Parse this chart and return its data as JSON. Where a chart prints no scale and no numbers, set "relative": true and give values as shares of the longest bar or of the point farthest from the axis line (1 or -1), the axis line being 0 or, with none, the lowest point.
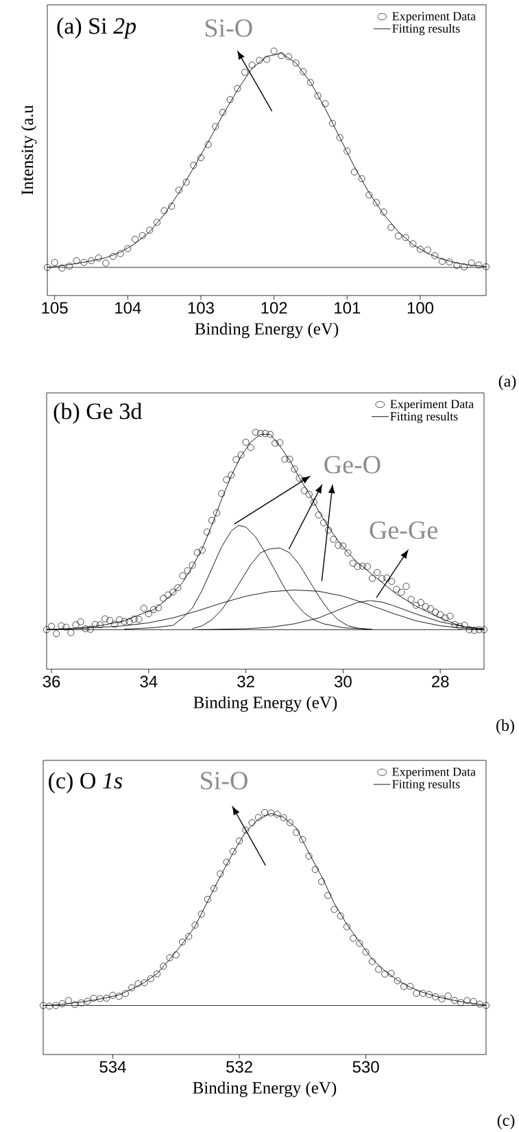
{
  "chart_data": [
    {
      "type": "scatter",
      "title": "(a) Si *2p*",
      "xlabel": "Binding Energy (eV)",
      "ylabel": "Intensity (a.u",
      "relative": true,
      "legend": "top right",
      "xlim": [
        105.1,
        99.1
      ],
      "xticks": [
        105,
        104,
        103,
        102,
        101,
        100
      ],
      "annotations": [
        "Si-O",
        "(a)"
      ],
      "series": [
        {
          "name": "Experiment Data",
          "marker": "circle",
          "color": "#000000",
          "x": [
            105.1,
            105,
            104.9,
            104.8,
            104.7,
            104.6,
            104.5,
            104.4,
            104.3,
            104.2,
            104.1,
            104,
            103.9,
            103.8,
            103.7,
            103.6,
            103.5,
            103.4,
            103.3,
            103.2,
            103.1,
            103,
            102.9,
            102.8,
            102.7,
            102.6,
            102.5,
            102.4,
            102.3,
            102.2,
            102.1,
            102,
            101.9,
            101.8,
            101.7,
            101.6,
            101.5,
            101.4,
            101.3,
            101.2,
            101.1,
            101,
            100.9,
            100.8,
            100.7,
            100.6,
            100.5,
            100.4,
            100.3,
            100.2,
            100.1,
            100,
            99.9,
            99.8,
            99.7,
            99.6,
            99.5,
            99.4,
            99.3,
            99.2,
            99.1
          ],
          "values": [
            0,
            0.023,
            -0.003,
            0.006,
            0.031,
            0.023,
            0.031,
            0.044,
            0.02,
            0.051,
            0.064,
            0.087,
            0.13,
            0.147,
            0.172,
            0.208,
            0.262,
            0.283,
            0.357,
            0.394,
            0.472,
            0.507,
            0.568,
            0.651,
            0.717,
            0.776,
            0.827,
            0.902,
            0.936,
            0.957,
            0.962,
            1,
            0.979,
            0.974,
            0.945,
            0.905,
            0.855,
            0.793,
            0.757,
            0.666,
            0.6,
            0.538,
            0.441,
            0.41,
            0.335,
            0.3,
            0.256,
            0.185,
            0.145,
            0.138,
            0.109,
            0.084,
            0.081,
            0.054,
            0.028,
            0.025,
            0.009,
            0.002,
            0.021,
            0.011,
            0.003
          ]
        },
        {
          "name": "Fitting results",
          "type": "line",
          "marker": "none",
          "color": "#000000",
          "x": [
            105.1,
            104.9,
            104.7,
            104.5,
            104.3,
            104.1,
            103.9,
            103.7,
            103.5,
            103.3,
            103.1,
            102.9,
            102.7,
            102.5,
            102.3,
            102.1,
            101.9,
            101.7,
            101.5,
            101.3,
            101.1,
            100.9,
            100.7,
            100.5,
            100.3,
            100.1,
            99.9,
            99.7,
            99.5,
            99.3,
            99.1
          ],
          "values": [
            0,
            0.008,
            0.018,
            0.03,
            0.045,
            0.07,
            0.11,
            0.165,
            0.245,
            0.345,
            0.46,
            0.58,
            0.705,
            0.82,
            0.92,
            0.975,
            0.99,
            0.945,
            0.855,
            0.735,
            0.6,
            0.465,
            0.345,
            0.245,
            0.165,
            0.105,
            0.065,
            0.038,
            0.02,
            0.01,
            0.004
          ]
        }
      ]
    },
    {
      "type": "scatter",
      "title": "(b) Ge 3d",
      "xlabel": "Binding Energy (eV)",
      "relative": true,
      "legend": "top right",
      "xlim": [
        36.1,
        27.1
      ],
      "xticks": [
        36,
        34,
        32,
        30,
        28
      ],
      "annotations": [
        "Ge-O",
        "Ge-Ge",
        "(b)"
      ],
      "series": [
        {
          "name": "Experiment Data",
          "marker": "circle",
          "color": "#000000",
          "x": [
            36.1,
            36,
            35.9,
            35.8,
            35.7,
            35.6,
            35.5,
            35.4,
            35.3,
            35.2,
            35.1,
            35,
            34.9,
            34.8,
            34.7,
            34.6,
            34.5,
            34.4,
            34.3,
            34.2,
            34.1,
            34,
            33.9,
            33.8,
            33.7,
            33.6,
            33.5,
            33.4,
            33.3,
            33.2,
            33.1,
            33,
            32.9,
            32.8,
            32.7,
            32.6,
            32.5,
            32.4,
            32.3,
            32.2,
            32.1,
            32,
            31.9,
            31.8,
            31.7,
            31.6,
            31.5,
            31.4,
            31.3,
            31.2,
            31.1,
            31,
            30.9,
            30.8,
            30.7,
            30.6,
            30.5,
            30.4,
            30.3,
            30.2,
            30.1,
            30,
            29.9,
            29.8,
            29.7,
            29.6,
            29.5,
            29.4,
            29.3,
            29.2,
            29.1,
            29,
            28.9,
            28.8,
            28.7,
            28.6,
            28.5,
            28.4,
            28.3,
            28.2,
            28.1,
            28,
            27.9,
            27.8,
            27.7,
            27.6,
            27.5,
            27.4,
            27.3,
            27.2,
            27.1
          ],
          "values": [
            0,
            0.017,
            -0.02,
            0.02,
            0.013,
            -0.015,
            0.025,
            0.04,
            0.005,
            0.002,
            0.027,
            0.025,
            0.055,
            0.047,
            0.027,
            0.05,
            0.042,
            0.042,
            0.054,
            0.052,
            0.109,
            0.081,
            0.102,
            0.111,
            0.159,
            0.176,
            0.191,
            0.213,
            0.273,
            0.299,
            0.327,
            0.391,
            0.403,
            0.495,
            0.554,
            0.592,
            0.69,
            0.76,
            0.784,
            0.862,
            0.886,
            0.95,
            0.923,
            1,
            0.995,
            0.995,
            0.99,
            0.945,
            0.948,
            0.864,
            0.864,
            0.814,
            0.768,
            0.705,
            0.686,
            0.646,
            0.582,
            0.542,
            0.505,
            0.458,
            0.428,
            0.424,
            0.389,
            0.337,
            0.32,
            0.322,
            0.32,
            0.26,
            0.29,
            0.26,
            0.262,
            0.245,
            0.205,
            0.19,
            0.22,
            0.154,
            0.124,
            0.138,
            0.117,
            0.106,
            0.089,
            0.077,
            0.059,
            0.069,
            0.027,
            0.017,
            0.023,
            0,
            -0.003,
            0,
            0
          ]
        },
        {
          "name": "Fitting results",
          "type": "line",
          "marker": "none",
          "color": "#000000",
          "x": [
            36.1,
            35.7,
            35.3,
            34.9,
            34.5,
            34.1,
            33.9,
            33.7,
            33.5,
            33.3,
            33.1,
            32.9,
            32.7,
            32.5,
            32.3,
            32.1,
            31.9,
            31.7,
            31.5,
            31.3,
            31.1,
            30.9,
            30.7,
            30.5,
            30.3,
            30.1,
            29.9,
            29.7,
            29.5,
            29.3,
            29.1,
            28.9,
            28.7,
            28.5,
            28.3,
            28.1,
            27.9,
            27.7,
            27.5,
            27.3,
            27.1
          ],
          "values": [
            0,
            0.005,
            0.012,
            0.025,
            0.045,
            0.085,
            0.1,
            0.14,
            0.185,
            0.24,
            0.32,
            0.41,
            0.53,
            0.66,
            0.78,
            0.88,
            0.95,
            0.99,
            0.99,
            0.93,
            0.86,
            0.77,
            0.69,
            0.6,
            0.52,
            0.45,
            0.39,
            0.34,
            0.3,
            0.26,
            0.22,
            0.18,
            0.15,
            0.12,
            0.095,
            0.07,
            0.05,
            0.03,
            0.015,
            0.005,
            0.002
          ]
        },
        {
          "type": "line",
          "marker": "none",
          "color": "#000000",
          "x": [
            34.5,
            33.9,
            33.5,
            33.3,
            33.1,
            32.9,
            32.7,
            32.5,
            32.3,
            32.15,
            32,
            31.8,
            31.6,
            31.4,
            31.2,
            31,
            30.8,
            30.6,
            30.4,
            30,
            29.5
          ],
          "values": [
            0.003,
            0.01,
            0.022,
            0.06,
            0.11,
            0.2,
            0.31,
            0.42,
            0.5,
            0.529,
            0.52,
            0.47,
            0.39,
            0.3,
            0.21,
            0.14,
            0.085,
            0.05,
            0.03,
            0.01,
            0.003
          ]
        },
        {
          "type": "line",
          "marker": "none",
          "color": "#000000",
          "x": [
            33.1,
            32.9,
            32.7,
            32.5,
            32.3,
            32.1,
            31.9,
            31.7,
            31.5,
            31.3,
            31.1,
            30.9,
            30.7,
            30.5,
            30.3,
            30.1,
            29.9,
            29.7,
            29.4
          ],
          "values": [
            0.005,
            0.02,
            0.05,
            0.1,
            0.17,
            0.25,
            0.33,
            0.39,
            0.41,
            0.414,
            0.39,
            0.33,
            0.25,
            0.17,
            0.1,
            0.05,
            0.02,
            0.008,
            0.002
          ]
        },
        {
          "type": "line",
          "marker": "none",
          "color": "#000000",
          "x": [
            36.1,
            35.5,
            34.5,
            34,
            33.5,
            33,
            32.5,
            32,
            31.5,
            31,
            30.5,
            30,
            29.5,
            29,
            28.5,
            28,
            27.5,
            27.1
          ],
          "values": [
            0.002,
            0.005,
            0.02,
            0.035,
            0.06,
            0.095,
            0.135,
            0.17,
            0.193,
            0.201,
            0.195,
            0.17,
            0.13,
            0.085,
            0.045,
            0.02,
            0.007,
            0.002
          ]
        },
        {
          "type": "line",
          "marker": "none",
          "color": "#000000",
          "x": [
            33,
            32,
            31.5,
            31,
            30.5,
            30,
            29.7,
            29.45,
            29.2,
            29,
            28.5,
            28,
            27.5,
            27.1
          ],
          "values": [
            0,
            0.005,
            0.012,
            0.03,
            0.06,
            0.11,
            0.138,
            0.148,
            0.14,
            0.125,
            0.08,
            0.04,
            0.015,
            0.005
          ]
        }
      ]
    },
    {
      "type": "scatter",
      "title": "(c) O *1s*",
      "xlabel": "Binding Energy (eV)",
      "relative": true,
      "legend": "top right",
      "xlim": [
        535.1,
        528.1
      ],
      "xticks": [
        534,
        532,
        530
      ],
      "annotations": [
        "Si-O",
        "(c)"
      ],
      "series": [
        {
          "name": "Experiment Data",
          "marker": "circle",
          "color": "#000000",
          "x": [
            535.1,
            535,
            534.9,
            534.8,
            534.7,
            534.6,
            534.5,
            534.4,
            534.3,
            534.2,
            534.1,
            534,
            533.9,
            533.8,
            533.7,
            533.6,
            533.5,
            533.4,
            533.3,
            533.2,
            533.1,
            533,
            532.9,
            532.8,
            532.7,
            532.6,
            532.5,
            532.4,
            532.3,
            532.2,
            532.1,
            532,
            531.9,
            531.8,
            531.7,
            531.6,
            531.5,
            531.4,
            531.3,
            531.2,
            531.1,
            531,
            530.9,
            530.8,
            530.7,
            530.6,
            530.5,
            530.4,
            530.3,
            530.2,
            530.1,
            530,
            529.9,
            529.8,
            529.7,
            529.6,
            529.5,
            529.4,
            529.3,
            529.2,
            529.1,
            529,
            528.9,
            528.8,
            528.7,
            528.6,
            528.5,
            528.4,
            528.3,
            528.2,
            528.1
          ],
          "values": [
            0,
            -0.003,
            0,
            0.009,
            0.026,
            0.005,
            0.014,
            0.022,
            0.038,
            0.036,
            0.038,
            0.053,
            0.048,
            0.062,
            0.092,
            0.113,
            0.118,
            0.139,
            0.164,
            0.204,
            0.247,
            0.262,
            0.329,
            0.358,
            0.416,
            0.474,
            0.55,
            0.606,
            0.682,
            0.743,
            0.798,
            0.853,
            0.909,
            0.947,
            0.974,
            1,
            0.998,
            0.991,
            0.973,
            0.947,
            0.897,
            0.86,
            0.774,
            0.705,
            0.642,
            0.57,
            0.498,
            0.464,
            0.408,
            0.348,
            0.322,
            0.277,
            0.228,
            0.187,
            0.163,
            0.166,
            0.128,
            0.098,
            0.099,
            0.063,
            0.063,
            0.057,
            0.045,
            0.034,
            0.05,
            0.027,
            0.015,
            0.026,
            0.021,
            0.007,
            0
          ]
        },
        {
          "name": "Fitting results",
          "type": "line",
          "marker": "none",
          "color": "#000000",
          "x": [
            535.1,
            534.9,
            534.7,
            534.5,
            534.3,
            534.1,
            533.9,
            533.7,
            533.5,
            533.3,
            533.1,
            532.9,
            532.7,
            532.5,
            532.3,
            532.1,
            531.9,
            531.7,
            531.5,
            531.3,
            531.1,
            530.9,
            530.7,
            530.5,
            530.3,
            530.1,
            529.9,
            529.7,
            529.5,
            529.3,
            529.1,
            528.9,
            528.7,
            528.5,
            528.3,
            528.1
          ],
          "values": [
            0,
            0.003,
            0.01,
            0.018,
            0.028,
            0.04,
            0.055,
            0.085,
            0.12,
            0.165,
            0.24,
            0.32,
            0.41,
            0.54,
            0.67,
            0.79,
            0.9,
            0.965,
            0.995,
            0.975,
            0.92,
            0.79,
            0.67,
            0.53,
            0.42,
            0.33,
            0.24,
            0.18,
            0.13,
            0.095,
            0.068,
            0.048,
            0.032,
            0.02,
            0.01,
            0.003
          ]
        }
      ]
    }
  ]
}
